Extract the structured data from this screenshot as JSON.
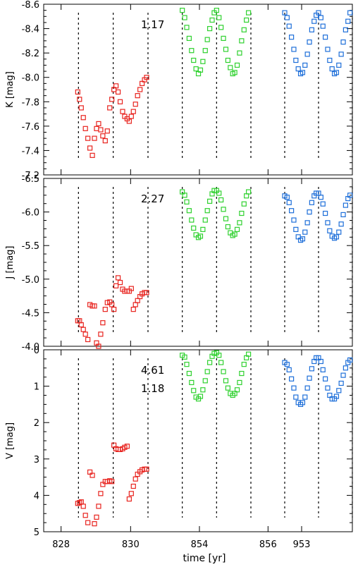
{
  "chart_data": {
    "type": "scatter",
    "xlabel": "time [yr]",
    "x_ticks": [
      "828",
      "830",
      "854",
      "856",
      "953",
      "955"
    ],
    "grid": false,
    "series_colors": [
      "#e8231e",
      "#2fd12f",
      "#1e6fd9"
    ],
    "marker": "open-square",
    "panels": [
      {
        "ylabel": "K [mag]",
        "ylim": [
          -7.2,
          -8.6
        ],
        "yticks": [
          -7.2,
          -7.4,
          -7.6,
          -7.8,
          -8.0,
          -8.2,
          -8.4,
          -8.6
        ],
        "ytick_labels": [
          "-7.2",
          "-7.4",
          "-7.6",
          "-7.8",
          "-8.0",
          "-8.2",
          "-8.4",
          "-8.6"
        ],
        "annotations": [
          "1.17"
        ],
        "dashed_lines_x": [
          829.0,
          830.0,
          831.0,
          854.0,
          855.0,
          856.0,
          953.0,
          954.0,
          955.0
        ],
        "series": [
          {
            "epoch": 0,
            "x": [
              828.98,
              829.03,
              829.08,
              829.14,
              829.2,
              829.27,
              829.33,
              829.4,
              829.46,
              829.52,
              829.58,
              829.64,
              829.7,
              829.77,
              829.83,
              829.9,
              829.96,
              830.02,
              830.08,
              830.14,
              830.2,
              830.27,
              830.33,
              830.4,
              830.46,
              830.52,
              830.58,
              830.64,
              830.7,
              830.77,
              830.83,
              830.9,
              830.96
            ],
            "y": [
              -7.88,
              -7.82,
              -7.75,
              -7.67,
              -7.58,
              -7.5,
              -7.42,
              -7.36,
              -7.5,
              -7.58,
              -7.62,
              -7.57,
              -7.52,
              -7.48,
              -7.56,
              -7.75,
              -7.82,
              -7.9,
              -7.93,
              -7.88,
              -7.8,
              -7.72,
              -7.68,
              -7.66,
              -7.64,
              -7.68,
              -7.72,
              -7.78,
              -7.85,
              -7.9,
              -7.95,
              -7.98,
              -8.0
            ]
          },
          {
            "epoch": 1,
            "x": [
              854.0,
              854.07,
              854.13,
              854.2,
              854.27,
              854.33,
              854.4,
              854.47,
              854.53,
              854.6,
              854.67,
              854.73,
              854.8,
              854.87,
              854.93,
              855.0,
              855.07,
              855.13,
              855.2,
              855.27,
              855.33,
              855.4,
              855.47,
              855.53,
              855.6,
              855.67,
              855.73,
              855.8,
              855.87,
              855.93
            ],
            "y": [
              -8.55,
              -8.49,
              -8.41,
              -8.32,
              -8.22,
              -8.14,
              -8.07,
              -8.03,
              -8.06,
              -8.13,
              -8.22,
              -8.31,
              -8.4,
              -8.47,
              -8.53,
              -8.55,
              -8.49,
              -8.41,
              -8.32,
              -8.23,
              -8.14,
              -8.08,
              -8.03,
              -8.04,
              -8.1,
              -8.2,
              -8.3,
              -8.39,
              -8.47,
              -8.53
            ]
          },
          {
            "epoch": 2,
            "x": [
              953.0,
              953.07,
              953.13,
              953.2,
              953.27,
              953.33,
              953.4,
              953.47,
              953.53,
              953.6,
              953.67,
              953.73,
              953.8,
              953.87,
              953.93,
              954.0,
              954.07,
              954.13,
              954.2,
              954.27,
              954.33,
              954.4,
              954.47,
              954.53,
              954.6,
              954.67,
              954.73,
              954.8,
              954.87,
              954.93
            ],
            "y": [
              -8.53,
              -8.49,
              -8.42,
              -8.33,
              -8.23,
              -8.14,
              -8.07,
              -8.03,
              -8.04,
              -8.1,
              -8.19,
              -8.29,
              -8.39,
              -8.46,
              -8.51,
              -8.53,
              -8.49,
              -8.42,
              -8.33,
              -8.23,
              -8.14,
              -8.07,
              -8.03,
              -8.04,
              -8.1,
              -8.19,
              -8.29,
              -8.39,
              -8.46,
              -8.53
            ]
          }
        ]
      },
      {
        "ylabel": "J [mag]",
        "ylim": [
          -4.0,
          -6.5
        ],
        "yticks": [
          -4.0,
          -4.5,
          -5.0,
          -5.5,
          -6.0,
          -6.5
        ],
        "ytick_labels": [
          "-4.0",
          "-4.5",
          "-5.0",
          "-5.5",
          "-6.0",
          "-6.5"
        ],
        "annotations": [
          "2.27"
        ],
        "dashed_lines_x": [
          829.0,
          830.0,
          831.0,
          854.0,
          855.0,
          856.0,
          953.0,
          954.0,
          955.0
        ],
        "series": [
          {
            "epoch": 0,
            "x": [
              828.98,
              829.03,
              829.08,
              829.14,
              829.2,
              829.27,
              829.33,
              829.4,
              829.46,
              829.52,
              829.58,
              829.64,
              829.7,
              829.77,
              829.83,
              829.9,
              829.96,
              830.02,
              830.08,
              830.14,
              830.2,
              830.27,
              830.33,
              830.4,
              830.46,
              830.52,
              830.58,
              830.64,
              830.7,
              830.77,
              830.83,
              830.9,
              830.96
            ],
            "y": [
              -4.38,
              -4.38,
              -4.32,
              -4.25,
              -4.18,
              -4.1,
              -4.62,
              -4.6,
              -4.6,
              -4.05,
              -4.0,
              -4.18,
              -4.35,
              -4.55,
              -4.65,
              -4.66,
              -4.62,
              -4.55,
              -4.9,
              -5.02,
              -4.95,
              -4.85,
              -4.82,
              -4.82,
              -4.82,
              -4.86,
              -4.55,
              -4.62,
              -4.68,
              -4.74,
              -4.78,
              -4.8,
              -4.8
            ]
          },
          {
            "epoch": 1,
            "x": [
              854.0,
              854.07,
              854.13,
              854.2,
              854.27,
              854.33,
              854.4,
              854.47,
              854.53,
              854.6,
              854.67,
              854.73,
              854.8,
              854.87,
              854.93,
              855.0,
              855.07,
              855.13,
              855.2,
              855.27,
              855.33,
              855.4,
              855.47,
              855.53,
              855.6,
              855.67,
              855.73,
              855.8,
              855.87,
              855.93
            ],
            "y": [
              -6.3,
              -6.25,
              -6.15,
              -6.02,
              -5.88,
              -5.76,
              -5.66,
              -5.62,
              -5.64,
              -5.74,
              -5.88,
              -6.02,
              -6.16,
              -6.27,
              -6.32,
              -6.32,
              -6.28,
              -6.18,
              -6.04,
              -5.9,
              -5.78,
              -5.69,
              -5.65,
              -5.67,
              -5.74,
              -5.84,
              -5.98,
              -6.12,
              -6.24,
              -6.3
            ]
          },
          {
            "epoch": 2,
            "x": [
              953.0,
              953.07,
              953.13,
              953.2,
              953.27,
              953.33,
              953.4,
              953.47,
              953.53,
              953.6,
              953.67,
              953.73,
              953.8,
              953.87,
              953.93,
              954.0,
              954.07,
              954.13,
              954.2,
              954.27,
              954.33,
              954.4,
              954.47,
              954.53,
              954.6,
              954.67,
              954.73,
              954.8,
              954.87,
              954.93
            ],
            "y": [
              -6.24,
              -6.22,
              -6.14,
              -6.02,
              -5.88,
              -5.74,
              -5.63,
              -5.58,
              -5.6,
              -5.7,
              -5.84,
              -6.0,
              -6.14,
              -6.24,
              -6.28,
              -6.28,
              -6.22,
              -6.12,
              -5.98,
              -5.84,
              -5.72,
              -5.64,
              -5.61,
              -5.63,
              -5.7,
              -5.82,
              -5.96,
              -6.1,
              -6.2,
              -6.25
            ]
          }
        ]
      },
      {
        "ylabel": "V [mag]",
        "ylim": [
          5.0,
          0.0
        ],
        "yticks": [
          0,
          1,
          2,
          3,
          4,
          5
        ],
        "ytick_labels": [
          "0",
          "1",
          "2",
          "3",
          "4",
          "5"
        ],
        "annotations": [
          "4.61",
          "1.18"
        ],
        "dashed_lines_x": [
          829.0,
          830.0,
          831.0,
          854.0,
          855.0,
          856.0,
          953.0,
          954.0,
          955.0
        ],
        "series": [
          {
            "epoch": 0,
            "x": [
              828.98,
              829.03,
              829.08,
              829.14,
              829.2,
              829.27,
              829.33,
              829.4,
              829.46,
              829.52,
              829.58,
              829.64,
              829.7,
              829.77,
              829.83,
              829.9,
              829.96,
              830.02,
              830.08,
              830.14,
              830.2,
              830.27,
              830.33,
              830.4,
              830.46,
              830.52,
              830.58,
              830.64,
              830.7,
              830.77,
              830.83,
              830.9,
              830.96
            ],
            "y": [
              4.22,
              4.2,
              4.18,
              4.3,
              4.55,
              4.75,
              3.36,
              3.45,
              4.78,
              4.6,
              4.3,
              3.95,
              3.7,
              3.62,
              3.62,
              3.6,
              3.62,
              2.62,
              2.72,
              2.74,
              2.74,
              2.72,
              2.68,
              2.65,
              4.1,
              3.95,
              3.75,
              3.55,
              3.42,
              3.35,
              3.3,
              3.28,
              3.28
            ]
          },
          {
            "epoch": 1,
            "x": [
              854.0,
              854.07,
              854.13,
              854.2,
              854.27,
              854.33,
              854.4,
              854.47,
              854.53,
              854.6,
              854.67,
              854.73,
              854.8,
              854.87,
              854.93,
              855.0,
              855.07,
              855.13,
              855.2,
              855.27,
              855.33,
              855.4,
              855.47,
              855.53,
              855.6,
              855.67,
              855.73,
              855.8,
              855.87,
              855.93
            ],
            "y": [
              0.15,
              0.2,
              0.4,
              0.65,
              0.9,
              1.12,
              1.3,
              1.35,
              1.28,
              1.1,
              0.85,
              0.6,
              0.35,
              0.18,
              0.1,
              0.08,
              0.15,
              0.35,
              0.6,
              0.85,
              1.05,
              1.2,
              1.25,
              1.2,
              1.1,
              0.9,
              0.65,
              0.4,
              0.22,
              0.12
            ]
          },
          {
            "epoch": 2,
            "x": [
              953.0,
              953.07,
              953.13,
              953.2,
              953.27,
              953.33,
              953.4,
              953.47,
              953.53,
              953.6,
              953.67,
              953.73,
              953.8,
              953.87,
              953.93,
              954.0,
              954.07,
              954.13,
              954.2,
              954.27,
              954.33,
              954.4,
              954.47,
              954.53,
              954.6,
              954.67,
              954.73,
              954.8,
              954.87,
              954.93
            ],
            "y": [
              0.35,
              0.4,
              0.55,
              0.8,
              1.05,
              1.3,
              1.45,
              1.5,
              1.45,
              1.3,
              1.05,
              0.78,
              0.52,
              0.32,
              0.22,
              0.22,
              0.32,
              0.55,
              0.8,
              1.05,
              1.25,
              1.35,
              1.35,
              1.28,
              1.12,
              0.92,
              0.7,
              0.5,
              0.35,
              0.28
            ]
          }
        ]
      }
    ]
  }
}
